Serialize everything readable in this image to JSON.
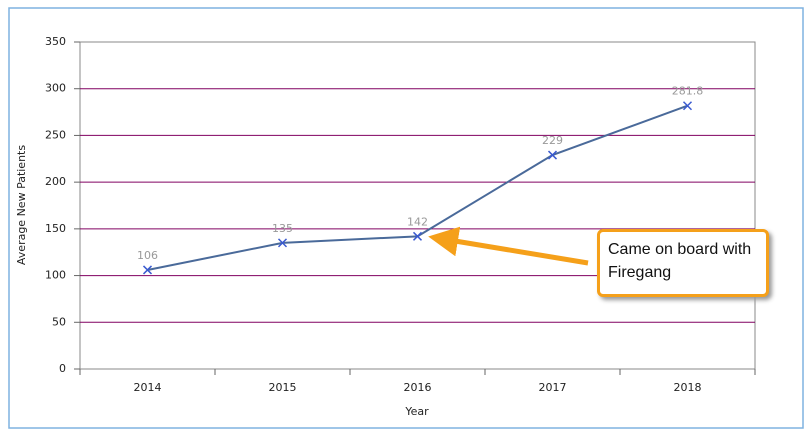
{
  "chart_data": {
    "type": "line",
    "x_label": "Year",
    "y_label": "Average New Patients",
    "categories": [
      "2014",
      "2015",
      "2016",
      "2017",
      "2018"
    ],
    "series": [
      {
        "name": "Average New Patients",
        "color": "#4a6a9a",
        "values": [
          106,
          135,
          142,
          229,
          281.8
        ]
      }
    ],
    "ylim": [
      0,
      350
    ],
    "yticks": [
      0,
      50,
      100,
      150,
      200,
      250,
      300,
      350
    ],
    "grid": true,
    "grid_color": "#800060",
    "annotation": "Came on board with Firegang"
  }
}
